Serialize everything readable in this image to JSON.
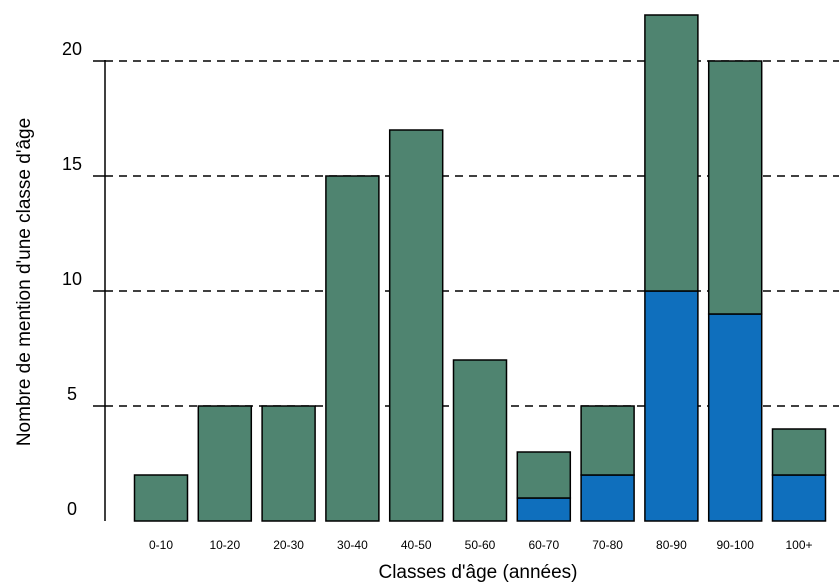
{
  "chart_data": {
    "type": "bar",
    "stacked": true,
    "xlabel": "Classes d'âge (années)",
    "ylabel": "Nombre de mention d'une classe d'âge",
    "ylim": [
      0,
      22
    ],
    "yticks": [
      0,
      5,
      10,
      15,
      20
    ],
    "grid": true,
    "categories": [
      "0-10",
      "10-20",
      "20-30",
      "30-40",
      "40-50",
      "50-60",
      "60-70",
      "70-80",
      "80-90",
      "90-100",
      "100+"
    ],
    "series": [
      {
        "color": "#0f6fbd",
        "values": [
          0,
          0,
          0,
          0,
          0,
          0,
          1,
          2,
          10,
          9,
          2
        ]
      },
      {
        "color": "#4f8470",
        "values": [
          2,
          5,
          5,
          15,
          17,
          7,
          2,
          3,
          12,
          11,
          2
        ]
      }
    ]
  }
}
